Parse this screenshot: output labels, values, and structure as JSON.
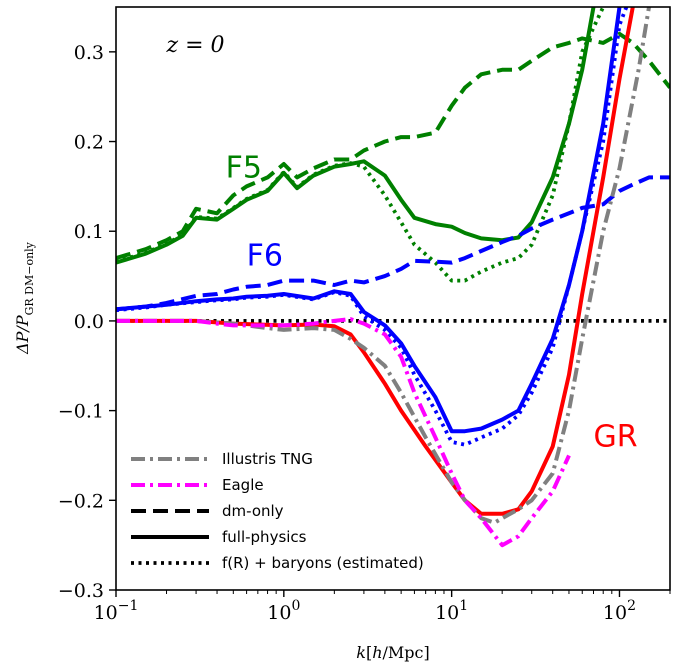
{
  "chart_data": {
    "type": "line",
    "xlabel": "k[h/Mpc]",
    "ylabel": "ΔP/P_GR DM−only",
    "xscale": "log",
    "xlim": [
      0.1,
      200
    ],
    "ylim": [
      -0.3,
      0.35
    ],
    "grid": false,
    "legend_placement": "bottom-left",
    "x_ticks": [
      {
        "value": 0.1,
        "base": "10",
        "exp": "−1"
      },
      {
        "value": 1,
        "base": "10",
        "exp": "0"
      },
      {
        "value": 10,
        "base": "10",
        "exp": "1"
      },
      {
        "value": 100,
        "base": "10",
        "exp": "2"
      }
    ],
    "y_ticks": [
      {
        "value": -0.3,
        "label": "−0.3"
      },
      {
        "value": -0.2,
        "label": "−0.2"
      },
      {
        "value": -0.1,
        "label": "−0.1"
      },
      {
        "value": 0.0,
        "label": "0.0"
      },
      {
        "value": 0.1,
        "label": "0.1"
      },
      {
        "value": 0.2,
        "label": "0.2"
      },
      {
        "value": 0.3,
        "label": "0.3"
      }
    ],
    "annotations": [
      {
        "text": "z = 0",
        "x": 0.2,
        "y": 0.3,
        "color": "#000000",
        "style": "z"
      },
      {
        "text": "F5",
        "x": 0.45,
        "y": 0.16,
        "color": "#008000",
        "style": "big"
      },
      {
        "text": "F6",
        "x": 0.6,
        "y": 0.062,
        "color": "#0000ff",
        "style": "big"
      },
      {
        "text": "GR",
        "x": 70,
        "y": -0.14,
        "color": "#ff0000",
        "style": "big"
      }
    ],
    "legend": [
      {
        "label": "Illustris TNG",
        "color": "#808080",
        "style": "dashdot"
      },
      {
        "label": "Eagle",
        "color": "#ff00ff",
        "style": "dashdot"
      },
      {
        "label": "dm-only",
        "color": "#000000",
        "style": "dashed"
      },
      {
        "label": "full-physics",
        "color": "#000000",
        "style": "solid"
      },
      {
        "label": "f(R) + baryons (estimated)",
        "color": "#000000",
        "style": "dotted"
      }
    ],
    "series": [
      {
        "color": "#000000",
        "style": "dotted",
        "x": [
          0.1,
          200
        ],
        "y": [
          0.0,
          0.0
        ]
      },
      {
        "color": "#008000",
        "style": "dashed",
        "x": [
          0.1,
          0.15,
          0.2,
          0.25,
          0.3,
          0.4,
          0.5,
          0.6,
          0.8,
          1.0,
          1.2,
          1.5,
          2.0,
          2.5,
          3.0,
          4.0,
          5.0,
          6.0,
          8.0,
          10,
          12,
          15,
          20,
          25,
          30,
          40,
          50,
          60,
          80,
          100,
          120,
          150,
          200
        ],
        "y": [
          0.07,
          0.08,
          0.09,
          0.1,
          0.125,
          0.12,
          0.14,
          0.15,
          0.16,
          0.175,
          0.16,
          0.17,
          0.18,
          0.18,
          0.19,
          0.2,
          0.205,
          0.205,
          0.21,
          0.24,
          0.26,
          0.275,
          0.28,
          0.28,
          0.29,
          0.305,
          0.31,
          0.315,
          0.31,
          0.32,
          0.31,
          0.29,
          0.26
        ]
      },
      {
        "color": "#008000",
        "style": "solid",
        "x": [
          0.1,
          0.15,
          0.2,
          0.25,
          0.3,
          0.4,
          0.5,
          0.6,
          0.8,
          1.0,
          1.2,
          1.5,
          2.0,
          2.5,
          3.0,
          4.0,
          5.0,
          6.0,
          8.0,
          10,
          12,
          15,
          20,
          25,
          30,
          40,
          50,
          60,
          70
        ],
        "y": [
          0.065,
          0.075,
          0.085,
          0.095,
          0.115,
          0.113,
          0.125,
          0.135,
          0.145,
          0.165,
          0.148,
          0.162,
          0.172,
          0.175,
          0.178,
          0.162,
          0.135,
          0.115,
          0.108,
          0.105,
          0.098,
          0.092,
          0.09,
          0.093,
          0.11,
          0.16,
          0.22,
          0.28,
          0.35
        ]
      },
      {
        "color": "#008000",
        "style": "dotted",
        "x": [
          0.1,
          0.15,
          0.2,
          0.25,
          0.3,
          0.4,
          0.5,
          0.6,
          0.8,
          1.0,
          1.2,
          1.5,
          2.0,
          2.5,
          3.0,
          4.0,
          5.0,
          6.0,
          8.0,
          10,
          12,
          15,
          20,
          25,
          30,
          40,
          50,
          60,
          80
        ],
        "y": [
          0.066,
          0.076,
          0.086,
          0.096,
          0.116,
          0.114,
          0.126,
          0.136,
          0.146,
          0.166,
          0.149,
          0.163,
          0.173,
          0.176,
          0.172,
          0.14,
          0.11,
          0.085,
          0.065,
          0.045,
          0.045,
          0.055,
          0.065,
          0.07,
          0.085,
          0.14,
          0.22,
          0.3,
          0.35
        ]
      },
      {
        "color": "#0000ff",
        "style": "dashed",
        "x": [
          0.1,
          0.15,
          0.2,
          0.3,
          0.4,
          0.5,
          0.6,
          0.8,
          1.0,
          1.5,
          2.0,
          2.5,
          3.0,
          4.0,
          5.0,
          6.0,
          8.0,
          10,
          12,
          15,
          20,
          25,
          30,
          40,
          50,
          60,
          80,
          100,
          120,
          150,
          200
        ],
        "y": [
          0.013,
          0.016,
          0.02,
          0.028,
          0.03,
          0.035,
          0.038,
          0.04,
          0.045,
          0.045,
          0.04,
          0.045,
          0.043,
          0.05,
          0.058,
          0.067,
          0.066,
          0.065,
          0.07,
          0.078,
          0.088,
          0.095,
          0.103,
          0.113,
          0.12,
          0.126,
          0.13,
          0.145,
          0.152,
          0.16,
          0.16
        ]
      },
      {
        "color": "#0000ff",
        "style": "solid",
        "x": [
          0.1,
          0.15,
          0.2,
          0.3,
          0.4,
          0.5,
          0.6,
          0.8,
          1.0,
          1.5,
          2.0,
          2.5,
          3.0,
          4.0,
          5.0,
          6.0,
          8.0,
          10,
          12,
          15,
          20,
          25,
          30,
          40,
          50,
          60,
          80,
          100
        ],
        "y": [
          0.013,
          0.016,
          0.018,
          0.022,
          0.024,
          0.025,
          0.027,
          0.028,
          0.03,
          0.025,
          0.033,
          0.03,
          0.01,
          -0.005,
          -0.025,
          -0.05,
          -0.085,
          -0.123,
          -0.123,
          -0.12,
          -0.11,
          -0.1,
          -0.07,
          -0.02,
          0.04,
          0.1,
          0.22,
          0.35
        ]
      },
      {
        "color": "#0000ff",
        "style": "dotted",
        "x": [
          0.1,
          0.15,
          0.2,
          0.3,
          0.4,
          0.5,
          0.6,
          0.8,
          1.0,
          1.5,
          2.0,
          2.5,
          3.0,
          4.0,
          5.0,
          6.0,
          8.0,
          10,
          12,
          15,
          20,
          25,
          30,
          40,
          50,
          60,
          80,
          100,
          110
        ],
        "y": [
          0.012,
          0.015,
          0.018,
          0.021,
          0.023,
          0.024,
          0.026,
          0.027,
          0.029,
          0.024,
          0.032,
          0.028,
          0.005,
          -0.01,
          -0.03,
          -0.06,
          -0.1,
          -0.135,
          -0.138,
          -0.13,
          -0.12,
          -0.105,
          -0.08,
          -0.03,
          0.04,
          0.1,
          0.2,
          0.33,
          0.35
        ]
      },
      {
        "color": "#ff0000",
        "style": "solid",
        "x": [
          0.1,
          0.2,
          0.3,
          0.5,
          1.0,
          1.5,
          2.0,
          2.5,
          3.0,
          4.0,
          5.0,
          7.0,
          10,
          12,
          15,
          20,
          25,
          30,
          40,
          50,
          60,
          70,
          80,
          100,
          120
        ],
        "y": [
          0.0,
          0.0,
          0.0,
          -0.003,
          -0.005,
          -0.004,
          -0.006,
          -0.015,
          -0.035,
          -0.07,
          -0.1,
          -0.14,
          -0.18,
          -0.2,
          -0.215,
          -0.215,
          -0.21,
          -0.19,
          -0.14,
          -0.06,
          0.03,
          0.1,
          0.16,
          0.27,
          0.35
        ]
      },
      {
        "color": "#808080",
        "style": "dashdot",
        "x": [
          0.1,
          0.2,
          0.3,
          0.5,
          0.8,
          1.0,
          1.5,
          2.0,
          2.5,
          3.0,
          4.0,
          5.0,
          7.0,
          10,
          12,
          15,
          18,
          20,
          25,
          30,
          40,
          50,
          60,
          80,
          100,
          130,
          150
        ],
        "y": [
          0.0,
          0.0,
          0.0,
          -0.003,
          -0.008,
          -0.01,
          -0.008,
          -0.01,
          -0.02,
          -0.03,
          -0.05,
          -0.08,
          -0.13,
          -0.18,
          -0.2,
          -0.22,
          -0.225,
          -0.22,
          -0.21,
          -0.2,
          -0.17,
          -0.1,
          -0.02,
          0.1,
          0.17,
          0.28,
          0.35
        ]
      },
      {
        "color": "#ff00ff",
        "style": "dashdot",
        "x": [
          0.1,
          0.2,
          0.3,
          0.4,
          0.5,
          0.7,
          1.0,
          1.5,
          2.0,
          2.5,
          3.0,
          4.0,
          5.0,
          6.0,
          8.0,
          10,
          12,
          15,
          20,
          25,
          30,
          40,
          50
        ],
        "y": [
          0.0,
          0.0,
          0.0,
          -0.003,
          -0.005,
          -0.005,
          -0.005,
          -0.003,
          0.0,
          0.002,
          -0.003,
          -0.015,
          -0.04,
          -0.08,
          -0.13,
          -0.17,
          -0.2,
          -0.22,
          -0.25,
          -0.24,
          -0.22,
          -0.19,
          -0.15
        ]
      }
    ]
  }
}
